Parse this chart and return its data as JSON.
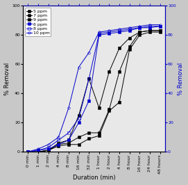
{
  "x_labels": [
    "0 min",
    "1 min",
    "2 min",
    "4 min",
    "8 min",
    "16 min",
    "32 min",
    "1 hour",
    "2 hour",
    "4 hour",
    "8 hour",
    "16 hour",
    "24 hour",
    "48 hours"
  ],
  "x_positions": [
    0,
    1,
    2,
    3,
    4,
    5,
    6,
    7,
    8,
    9,
    10,
    11,
    12,
    13
  ],
  "black_series": [
    {
      "label": "5 ppm",
      "y": [
        0,
        0,
        1,
        6,
        8,
        25,
        50,
        30,
        55,
        71,
        78,
        82,
        83,
        83
      ]
    },
    {
      "label": "7 ppm",
      "y": [
        0,
        0,
        1,
        5,
        6,
        10,
        13,
        13,
        29,
        55,
        72,
        82,
        83,
        83
      ]
    },
    {
      "label": "9 ppm",
      "y": [
        0,
        0,
        1,
        4,
        5,
        5,
        9,
        11,
        28,
        34,
        70,
        80,
        82,
        82
      ]
    }
  ],
  "blue_series": [
    {
      "label": "6 ppm",
      "marker": "s",
      "filled": true,
      "y": [
        0,
        1,
        2,
        5,
        8,
        20,
        35,
        80,
        81,
        82,
        83,
        85,
        85,
        86
      ]
    },
    {
      "label": "8 ppm",
      "marker": "s",
      "filled": false,
      "y": [
        0,
        1,
        3,
        8,
        13,
        23,
        50,
        81,
        82,
        83,
        84,
        85,
        86,
        86
      ]
    },
    {
      "label": "10 ppm",
      "marker": "o",
      "filled": false,
      "y": [
        0,
        2,
        5,
        10,
        30,
        58,
        68,
        82,
        83,
        84,
        85,
        86,
        87,
        87
      ]
    }
  ],
  "ylabel_left": "% Removal",
  "ylabel_right": "% Removal",
  "xlabel": "Duration (min)",
  "ylim": [
    0,
    100
  ],
  "axis_fontsize": 6,
  "tick_fontsize": 4.5,
  "legend_fontsize": 4.5,
  "bg_color": "#e8e8e8",
  "fig_color": "#c8c8c8",
  "right_axis_color": "#0000cc",
  "black_color": "black",
  "blue_color": "#0000cc"
}
